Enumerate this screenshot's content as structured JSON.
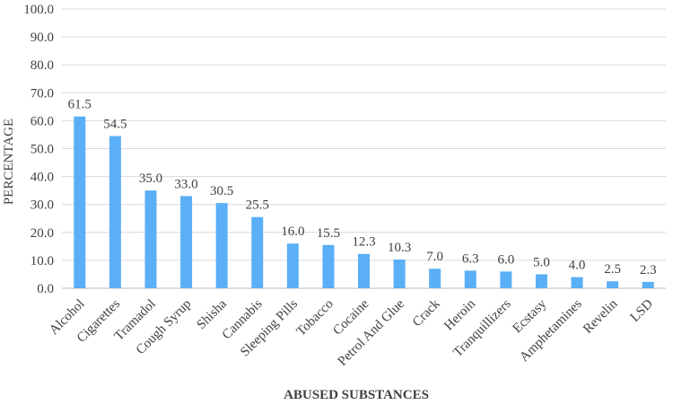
{
  "chart_data": {
    "type": "bar",
    "title": "",
    "xlabel": "ABUSED SUBSTANCES",
    "ylabel": "PERCENTAGE",
    "ylim": [
      0,
      100
    ],
    "yticks": [
      "0.0",
      "10.0",
      "20.0",
      "30.0",
      "40.0",
      "50.0",
      "60.0",
      "70.0",
      "80.0",
      "90.0",
      "100.0"
    ],
    "grid": true,
    "legend": "none",
    "colors": {
      "bar": "#5AAFF6",
      "grid": "#D9D9D9",
      "text": "#404040"
    },
    "categories": [
      "Alcohol",
      "Cigarettes",
      "Tramadol",
      "Cough Syrup",
      "Shisha",
      "Cannabis",
      "Sleeping Pills",
      "Tobacco",
      "Cocaine",
      "Petrol And Glue",
      "Crack",
      "Heroin",
      "Tranquillizers",
      "Ecstasy",
      "Amphetamines",
      "Revelin",
      "LSD"
    ],
    "values": [
      61.5,
      54.5,
      35.0,
      33.0,
      30.5,
      25.5,
      16.0,
      15.5,
      12.3,
      10.3,
      7.0,
      6.3,
      6.0,
      5.0,
      4.0,
      2.5,
      2.3
    ],
    "data_labels": [
      "61.5",
      "54.5",
      "35.0",
      "33.0",
      "30.5",
      "25.5",
      "16.0",
      "15.5",
      "12.3",
      "10.3",
      "7.0",
      "6.3",
      "6.0",
      "5.0",
      "4.0",
      "2.5",
      "2.3"
    ]
  }
}
